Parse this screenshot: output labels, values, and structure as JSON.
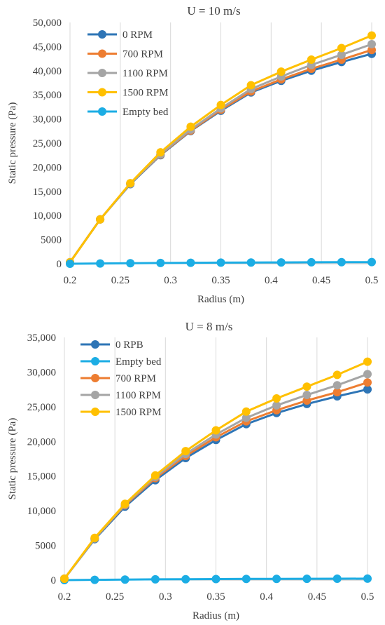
{
  "chart_data": [
    {
      "type": "line",
      "title": "U = 10 m/s",
      "xlabel": "Radius (m)",
      "ylabel": "Static pressure (Pa)",
      "xlim": [
        0.2,
        0.5
      ],
      "ylim": [
        0,
        50000
      ],
      "x": [
        0.2,
        0.23,
        0.26,
        0.29,
        0.32,
        0.35,
        0.38,
        0.41,
        0.44,
        0.47,
        0.5
      ],
      "x_ticks": [
        "0.2",
        "0.25",
        "0.3",
        "0.35",
        "0.4",
        "0.45",
        "0.5"
      ],
      "x_tick_values": [
        0.2,
        0.25,
        0.3,
        0.35,
        0.4,
        0.45,
        0.5
      ],
      "y_ticks": [
        "0",
        "5000",
        "10,000",
        "15,000",
        "20,000",
        "25,000",
        "30,000",
        "35,000",
        "40,000",
        "45,000",
        "50,000"
      ],
      "y_tick_values": [
        0,
        5000,
        10000,
        15000,
        20000,
        25000,
        30000,
        35000,
        40000,
        45000,
        50000
      ],
      "grid": "vertical",
      "legend_position": "top-left",
      "series": [
        {
          "name": "0 RPM",
          "color": "#2E75B6",
          "values": [
            300,
            9200,
            16500,
            22500,
            27500,
            31700,
            35500,
            37900,
            40000,
            41800,
            43500
          ]
        },
        {
          "name": "700 RPM",
          "color": "#ED7D31",
          "values": [
            300,
            9200,
            16600,
            22600,
            27600,
            31900,
            35700,
            38200,
            40400,
            42300,
            44300
          ]
        },
        {
          "name": "1100 RPM",
          "color": "#A5A5A5",
          "values": [
            300,
            9200,
            16600,
            22700,
            27800,
            32200,
            36200,
            38800,
            41200,
            43300,
            45500
          ]
        },
        {
          "name": "1500 RPM",
          "color": "#FFC000",
          "values": [
            300,
            9200,
            16700,
            23100,
            28400,
            32900,
            37000,
            39800,
            42300,
            44700,
            47300
          ]
        },
        {
          "name": "Empty bed",
          "color": "#1CADE4",
          "values": [
            0,
            60,
            110,
            160,
            200,
            230,
            260,
            280,
            300,
            320,
            340
          ]
        }
      ]
    },
    {
      "type": "line",
      "title": "U = 8 m/s",
      "xlabel": "Radius (m)",
      "ylabel": "Static pressure (Pa)",
      "xlim": [
        0.2,
        0.5
      ],
      "ylim": [
        0,
        35000
      ],
      "x": [
        0.2,
        0.23,
        0.26,
        0.29,
        0.32,
        0.35,
        0.38,
        0.41,
        0.44,
        0.47,
        0.5
      ],
      "x_ticks": [
        "0.2",
        "0.25",
        "0.3",
        "0.35",
        "0.4",
        "0.45",
        "0.5"
      ],
      "x_tick_values": [
        0.2,
        0.25,
        0.3,
        0.35,
        0.4,
        0.45,
        0.5
      ],
      "y_ticks": [
        "0",
        "5000",
        "10,000",
        "15,000",
        "20,000",
        "25,000",
        "30,000",
        "35,000"
      ],
      "y_tick_values": [
        0,
        5000,
        10000,
        15000,
        20000,
        25000,
        30000,
        35000
      ],
      "grid": "vertical",
      "legend_position": "top-left",
      "series": [
        {
          "name": "0 RPB",
          "color": "#2E75B6",
          "values": [
            200,
            5900,
            10600,
            14400,
            17600,
            20200,
            22500,
            24100,
            25400,
            26500,
            27500
          ]
        },
        {
          "name": "Empty bed",
          "color": "#1CADE4",
          "values": [
            0,
            40,
            80,
            110,
            130,
            150,
            170,
            180,
            190,
            200,
            210
          ]
        },
        {
          "name": "700 RPM",
          "color": "#ED7D31",
          "values": [
            200,
            6000,
            10800,
            14700,
            17900,
            20600,
            22900,
            24500,
            25900,
            27100,
            28500
          ]
        },
        {
          "name": "1100 RPM",
          "color": "#A5A5A5",
          "values": [
            200,
            6000,
            10900,
            14900,
            18200,
            21000,
            23400,
            25200,
            26700,
            28100,
            29700
          ]
        },
        {
          "name": "1500 RPM",
          "color": "#FFC000",
          "values": [
            200,
            6100,
            11000,
            15100,
            18600,
            21600,
            24300,
            26200,
            27900,
            29600,
            31500
          ]
        }
      ]
    }
  ]
}
